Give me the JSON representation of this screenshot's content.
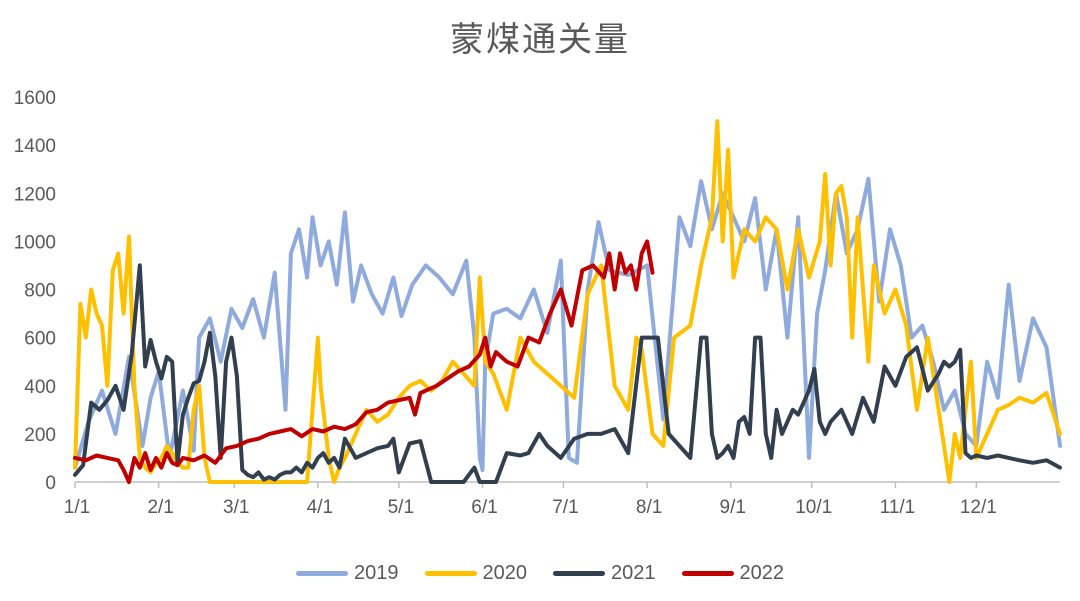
{
  "chart_data": {
    "type": "line",
    "title": "蒙煤通关量",
    "xlabel": "",
    "ylabel": "",
    "ylim": [
      0,
      1600
    ],
    "yticks": [
      "0",
      "200",
      "400",
      "600",
      "800",
      "1000",
      "1200",
      "1400",
      "1600"
    ],
    "xlim": [
      0,
      365
    ],
    "xtick_labels": [
      "1/1",
      "2/1",
      "3/1",
      "4/1",
      "5/1",
      "6/1",
      "7/1",
      "8/1",
      "9/1",
      "10/1",
      "11/1",
      "12/1"
    ],
    "xtick_days": [
      0,
      31,
      59,
      90,
      120,
      151,
      181,
      212,
      243,
      273,
      304,
      334
    ],
    "legend_position": "bottom",
    "grid": false,
    "series": [
      {
        "name": "2019",
        "color": "#8faadc",
        "x": [
          0,
          5,
          10,
          15,
          20,
          25,
          28,
          31,
          35,
          40,
          44,
          46,
          50,
          54,
          58,
          62,
          66,
          70,
          74,
          78,
          80,
          83,
          86,
          88,
          91,
          94,
          97,
          100,
          103,
          106,
          110,
          114,
          118,
          121,
          125,
          130,
          135,
          140,
          145,
          148,
          150,
          151,
          152,
          155,
          160,
          165,
          170,
          175,
          180,
          183,
          186,
          190,
          194,
          198,
          205,
          212,
          218,
          224,
          228,
          232,
          236,
          240,
          244,
          248,
          252,
          256,
          260,
          264,
          268,
          272,
          275,
          278,
          282,
          286,
          290,
          294,
          298,
          302,
          306,
          310,
          314,
          318,
          322,
          326,
          330,
          334,
          338,
          342,
          346,
          350,
          355,
          360,
          365
        ],
        "y": [
          60,
          250,
          380,
          200,
          520,
          150,
          350,
          460,
          100,
          380,
          130,
          600,
          680,
          500,
          720,
          640,
          760,
          600,
          870,
          300,
          950,
          1050,
          850,
          1100,
          900,
          1000,
          820,
          1120,
          750,
          900,
          780,
          700,
          850,
          690,
          820,
          900,
          850,
          780,
          920,
          600,
          100,
          50,
          500,
          700,
          720,
          680,
          800,
          620,
          920,
          100,
          80,
          800,
          1080,
          880,
          860,
          900,
          260,
          1100,
          980,
          1250,
          1050,
          1200,
          1100,
          1000,
          1180,
          800,
          1050,
          600,
          1100,
          100,
          700,
          880,
          1200,
          950,
          1050,
          1260,
          750,
          1050,
          900,
          600,
          650,
          500,
          300,
          380,
          200,
          150,
          500,
          350,
          820,
          420,
          680,
          560,
          150
        ]
      },
      {
        "name": "2020",
        "color": "#ffc000",
        "x": [
          0,
          2,
          4,
          6,
          8,
          10,
          12,
          14,
          16,
          18,
          20,
          22,
          24,
          26,
          28,
          30,
          32,
          34,
          36,
          38,
          40,
          42,
          44,
          46,
          48,
          50,
          52,
          54,
          56,
          60,
          70,
          80,
          86,
          90,
          91,
          92,
          94,
          96,
          98,
          100,
          104,
          108,
          112,
          116,
          120,
          124,
          128,
          132,
          136,
          140,
          144,
          148,
          150,
          152,
          155,
          160,
          165,
          170,
          175,
          180,
          185,
          190,
          195,
          200,
          205,
          208,
          210,
          214,
          218,
          222,
          228,
          232,
          236,
          238,
          240,
          242,
          244,
          248,
          252,
          256,
          260,
          264,
          268,
          272,
          276,
          278,
          280,
          282,
          284,
          286,
          288,
          290,
          292,
          294,
          296,
          300,
          304,
          308,
          312,
          316,
          320,
          324,
          326,
          328,
          330,
          332,
          334,
          338,
          342,
          346,
          350,
          355,
          360,
          365
        ],
        "y": [
          60,
          740,
          600,
          800,
          700,
          650,
          400,
          880,
          950,
          700,
          1020,
          400,
          100,
          60,
          40,
          80,
          100,
          150,
          120,
          80,
          60,
          60,
          300,
          400,
          100,
          0,
          0,
          0,
          0,
          0,
          0,
          0,
          0,
          600,
          400,
          300,
          100,
          0,
          60,
          100,
          200,
          300,
          250,
          280,
          350,
          400,
          420,
          380,
          420,
          500,
          450,
          400,
          850,
          500,
          450,
          300,
          600,
          500,
          450,
          400,
          350,
          780,
          900,
          400,
          300,
          600,
          550,
          200,
          150,
          600,
          650,
          900,
          1100,
          1500,
          1000,
          1380,
          850,
          1050,
          1000,
          1100,
          1050,
          800,
          1050,
          850,
          1000,
          1280,
          900,
          1200,
          1230,
          1100,
          600,
          1100,
          800,
          500,
          900,
          700,
          800,
          650,
          300,
          600,
          300,
          0,
          200,
          100,
          300,
          500,
          100,
          200,
          300,
          320,
          350,
          330,
          370,
          200
        ]
      },
      {
        "name": "2021",
        "color": "#323f4f",
        "x": [
          0,
          3,
          6,
          9,
          12,
          15,
          18,
          21,
          24,
          26,
          28,
          30,
          32,
          34,
          36,
          38,
          40,
          42,
          44,
          46,
          48,
          50,
          52,
          54,
          56,
          58,
          60,
          62,
          64,
          66,
          68,
          70,
          72,
          74,
          76,
          78,
          80,
          82,
          84,
          86,
          88,
          90,
          92,
          94,
          96,
          98,
          100,
          104,
          108,
          112,
          116,
          118,
          120,
          124,
          128,
          132,
          136,
          140,
          144,
          148,
          150,
          151,
          152,
          154,
          156,
          160,
          165,
          168,
          170,
          172,
          175,
          180,
          185,
          190,
          195,
          200,
          205,
          210,
          212,
          214,
          216,
          220,
          224,
          228,
          232,
          234,
          236,
          238,
          240,
          242,
          244,
          246,
          248,
          250,
          252,
          254,
          256,
          258,
          260,
          262,
          264,
          266,
          268,
          270,
          272,
          274,
          276,
          278,
          280,
          284,
          288,
          292,
          296,
          300,
          304,
          308,
          312,
          316,
          320,
          322,
          324,
          326,
          328,
          330,
          332,
          334,
          338,
          342,
          346,
          350,
          355,
          360,
          365
        ],
        "y": [
          30,
          70,
          330,
          300,
          340,
          400,
          300,
          530,
          900,
          480,
          590,
          500,
          430,
          520,
          500,
          80,
          280,
          350,
          410,
          420,
          500,
          620,
          440,
          100,
          500,
          600,
          440,
          50,
          30,
          20,
          40,
          10,
          20,
          10,
          30,
          40,
          40,
          60,
          40,
          80,
          60,
          100,
          120,
          80,
          100,
          60,
          180,
          100,
          120,
          140,
          150,
          180,
          40,
          160,
          170,
          0,
          0,
          0,
          0,
          60,
          0,
          0,
          0,
          0,
          0,
          120,
          110,
          120,
          160,
          200,
          150,
          100,
          180,
          200,
          200,
          220,
          120,
          600,
          600,
          600,
          600,
          200,
          150,
          100,
          600,
          600,
          200,
          100,
          120,
          150,
          100,
          250,
          270,
          200,
          600,
          600,
          200,
          100,
          300,
          200,
          250,
          300,
          280,
          330,
          380,
          470,
          250,
          200,
          250,
          300,
          200,
          350,
          250,
          480,
          400,
          520,
          560,
          380,
          450,
          500,
          480,
          500,
          550,
          120,
          100,
          110,
          100,
          110,
          100,
          90,
          80,
          90,
          60
        ]
      },
      {
        "name": "2022",
        "color": "#c00000",
        "x": [
          0,
          4,
          8,
          12,
          16,
          18,
          20,
          22,
          24,
          26,
          28,
          30,
          32,
          34,
          36,
          38,
          40,
          44,
          48,
          52,
          56,
          60,
          64,
          68,
          72,
          76,
          80,
          84,
          88,
          92,
          96,
          100,
          104,
          108,
          112,
          116,
          120,
          124,
          126,
          128,
          130,
          134,
          138,
          142,
          146,
          150,
          152,
          154,
          156,
          160,
          164,
          168,
          172,
          176,
          180,
          184,
          188,
          192,
          196,
          198,
          200,
          202,
          204,
          206,
          208,
          210,
          212,
          214
        ],
        "y": [
          100,
          90,
          110,
          100,
          90,
          50,
          0,
          100,
          60,
          120,
          50,
          100,
          60,
          120,
          80,
          70,
          100,
          90,
          110,
          80,
          140,
          150,
          170,
          180,
          200,
          210,
          220,
          190,
          220,
          210,
          230,
          220,
          240,
          290,
          300,
          330,
          340,
          350,
          280,
          370,
          380,
          400,
          430,
          460,
          480,
          530,
          600,
          480,
          540,
          500,
          480,
          600,
          580,
          700,
          800,
          650,
          880,
          900,
          850,
          950,
          800,
          950,
          870,
          900,
          800,
          950,
          1000,
          870
        ]
      }
    ]
  }
}
